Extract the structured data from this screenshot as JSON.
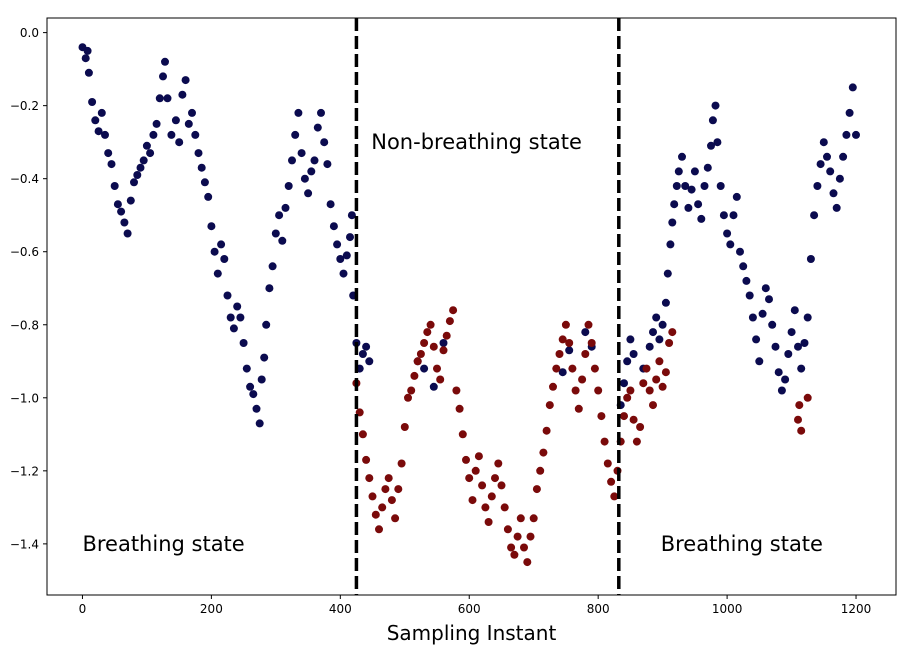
{
  "chart_data": {
    "type": "scatter",
    "title": "",
    "xlabel": "Sampling Instant",
    "ylabel": "",
    "xlim": [
      -55,
      1262
    ],
    "ylim": [
      -1.54,
      0.04
    ],
    "xticks": [
      0,
      200,
      400,
      600,
      800,
      1000,
      1200
    ],
    "xtick_labels": [
      "0",
      "200",
      "400",
      "600",
      "800",
      "1000",
      "1200"
    ],
    "yticks": [
      0.0,
      -0.2,
      -0.4,
      -0.6,
      -0.8,
      -1.0,
      -1.2,
      -1.4
    ],
    "ytick_labels": [
      "0.0",
      "−0.2",
      "−0.4",
      "−0.6",
      "−0.8",
      "−1.0",
      "−1.2",
      "−1.4"
    ],
    "grid": false,
    "colors": {
      "breathing": "#0b0b4f",
      "non_breathing": "#7a0a0a",
      "boundary": "#000000"
    },
    "boundaries": [
      425,
      832
    ],
    "annotations": [
      {
        "text": "Breathing state",
        "x": 0,
        "y": -1.4
      },
      {
        "text": "Non-breathing state",
        "x": 448,
        "y": -0.3
      },
      {
        "text": "Breathing state",
        "x": 897,
        "y": -1.4
      }
    ],
    "series": [
      {
        "color_key": "breathing",
        "points": [
          [
            0,
            -0.04
          ],
          [
            5,
            -0.07
          ],
          [
            8,
            -0.05
          ],
          [
            10,
            -0.11
          ],
          [
            15,
            -0.19
          ],
          [
            20,
            -0.24
          ],
          [
            25,
            -0.27
          ],
          [
            30,
            -0.22
          ],
          [
            35,
            -0.28
          ],
          [
            40,
            -0.33
          ],
          [
            45,
            -0.36
          ],
          [
            50,
            -0.42
          ],
          [
            55,
            -0.47
          ],
          [
            60,
            -0.49
          ],
          [
            65,
            -0.52
          ],
          [
            70,
            -0.55
          ],
          [
            75,
            -0.46
          ],
          [
            80,
            -0.41
          ],
          [
            85,
            -0.39
          ],
          [
            90,
            -0.37
          ],
          [
            95,
            -0.35
          ],
          [
            100,
            -0.31
          ],
          [
            105,
            -0.33
          ],
          [
            110,
            -0.28
          ],
          [
            115,
            -0.25
          ],
          [
            120,
            -0.18
          ],
          [
            125,
            -0.12
          ],
          [
            128,
            -0.08
          ],
          [
            132,
            -0.18
          ],
          [
            138,
            -0.28
          ],
          [
            145,
            -0.24
          ],
          [
            150,
            -0.3
          ],
          [
            155,
            -0.17
          ],
          [
            160,
            -0.13
          ],
          [
            165,
            -0.25
          ],
          [
            170,
            -0.22
          ],
          [
            175,
            -0.28
          ],
          [
            180,
            -0.33
          ],
          [
            185,
            -0.37
          ],
          [
            190,
            -0.41
          ],
          [
            195,
            -0.45
          ],
          [
            200,
            -0.53
          ],
          [
            205,
            -0.6
          ],
          [
            210,
            -0.66
          ],
          [
            215,
            -0.58
          ],
          [
            220,
            -0.62
          ],
          [
            225,
            -0.72
          ],
          [
            230,
            -0.78
          ],
          [
            235,
            -0.81
          ],
          [
            240,
            -0.75
          ],
          [
            245,
            -0.78
          ],
          [
            250,
            -0.85
          ],
          [
            255,
            -0.92
          ],
          [
            260,
            -0.97
          ],
          [
            265,
            -0.99
          ],
          [
            270,
            -1.03
          ],
          [
            275,
            -1.07
          ],
          [
            278,
            -0.95
          ],
          [
            282,
            -0.89
          ],
          [
            285,
            -0.8
          ],
          [
            290,
            -0.7
          ],
          [
            295,
            -0.64
          ],
          [
            300,
            -0.55
          ],
          [
            305,
            -0.5
          ],
          [
            310,
            -0.57
          ],
          [
            315,
            -0.48
          ],
          [
            320,
            -0.42
          ],
          [
            325,
            -0.35
          ],
          [
            330,
            -0.28
          ],
          [
            335,
            -0.22
          ],
          [
            340,
            -0.33
          ],
          [
            345,
            -0.4
          ],
          [
            350,
            -0.44
          ],
          [
            355,
            -0.38
          ],
          [
            360,
            -0.35
          ],
          [
            365,
            -0.26
          ],
          [
            370,
            -0.22
          ],
          [
            375,
            -0.3
          ],
          [
            380,
            -0.36
          ],
          [
            385,
            -0.47
          ],
          [
            390,
            -0.53
          ],
          [
            395,
            -0.58
          ],
          [
            400,
            -0.62
          ],
          [
            405,
            -0.66
          ],
          [
            410,
            -0.61
          ],
          [
            415,
            -0.56
          ],
          [
            418,
            -0.5
          ],
          [
            420,
            -0.72
          ],
          [
            425,
            -0.85
          ],
          [
            430,
            -0.92
          ],
          [
            435,
            -0.88
          ],
          [
            440,
            -0.86
          ],
          [
            445,
            -0.9
          ],
          [
            520,
            -0.9
          ],
          [
            530,
            -0.92
          ],
          [
            545,
            -0.97
          ],
          [
            560,
            -0.85
          ],
          [
            745,
            -0.93
          ],
          [
            755,
            -0.87
          ],
          [
            780,
            -0.82
          ],
          [
            790,
            -0.86
          ],
          [
            835,
            -1.02
          ],
          [
            840,
            -0.96
          ],
          [
            845,
            -0.9
          ],
          [
            850,
            -0.84
          ],
          [
            855,
            -0.88
          ],
          [
            870,
            -0.92
          ],
          [
            880,
            -0.86
          ],
          [
            885,
            -0.82
          ],
          [
            890,
            -0.78
          ],
          [
            895,
            -0.84
          ],
          [
            900,
            -0.8
          ],
          [
            905,
            -0.74
          ],
          [
            908,
            -0.66
          ],
          [
            912,
            -0.58
          ],
          [
            915,
            -0.52
          ],
          [
            918,
            -0.47
          ],
          [
            922,
            -0.42
          ],
          [
            925,
            -0.38
          ],
          [
            930,
            -0.34
          ],
          [
            935,
            -0.42
          ],
          [
            940,
            -0.48
          ],
          [
            945,
            -0.43
          ],
          [
            950,
            -0.38
          ],
          [
            955,
            -0.47
          ],
          [
            960,
            -0.51
          ],
          [
            965,
            -0.42
          ],
          [
            970,
            -0.37
          ],
          [
            975,
            -0.31
          ],
          [
            978,
            -0.24
          ],
          [
            982,
            -0.2
          ],
          [
            985,
            -0.3
          ],
          [
            990,
            -0.42
          ],
          [
            995,
            -0.5
          ],
          [
            1000,
            -0.55
          ],
          [
            1005,
            -0.58
          ],
          [
            1010,
            -0.5
          ],
          [
            1015,
            -0.45
          ],
          [
            1020,
            -0.6
          ],
          [
            1025,
            -0.64
          ],
          [
            1030,
            -0.68
          ],
          [
            1035,
            -0.72
          ],
          [
            1040,
            -0.78
          ],
          [
            1045,
            -0.84
          ],
          [
            1050,
            -0.9
          ],
          [
            1055,
            -0.77
          ],
          [
            1060,
            -0.7
          ],
          [
            1065,
            -0.73
          ],
          [
            1070,
            -0.8
          ],
          [
            1075,
            -0.86
          ],
          [
            1080,
            -0.93
          ],
          [
            1085,
            -0.98
          ],
          [
            1090,
            -0.95
          ],
          [
            1095,
            -0.88
          ],
          [
            1100,
            -0.82
          ],
          [
            1105,
            -0.76
          ],
          [
            1110,
            -0.86
          ],
          [
            1115,
            -0.92
          ],
          [
            1120,
            -0.85
          ],
          [
            1125,
            -0.78
          ],
          [
            1130,
            -0.62
          ],
          [
            1135,
            -0.5
          ],
          [
            1140,
            -0.42
          ],
          [
            1145,
            -0.36
          ],
          [
            1150,
            -0.3
          ],
          [
            1155,
            -0.34
          ],
          [
            1160,
            -0.38
          ],
          [
            1165,
            -0.44
          ],
          [
            1170,
            -0.48
          ],
          [
            1175,
            -0.4
          ],
          [
            1180,
            -0.34
          ],
          [
            1185,
            -0.28
          ],
          [
            1190,
            -0.22
          ],
          [
            1195,
            -0.15
          ],
          [
            1200,
            -0.28
          ]
        ]
      },
      {
        "color_key": "non_breathing",
        "points": [
          [
            425,
            -0.96
          ],
          [
            430,
            -1.04
          ],
          [
            435,
            -1.1
          ],
          [
            440,
            -1.17
          ],
          [
            445,
            -1.22
          ],
          [
            450,
            -1.27
          ],
          [
            455,
            -1.32
          ],
          [
            460,
            -1.36
          ],
          [
            465,
            -1.3
          ],
          [
            470,
            -1.25
          ],
          [
            475,
            -1.22
          ],
          [
            480,
            -1.28
          ],
          [
            485,
            -1.33
          ],
          [
            490,
            -1.25
          ],
          [
            495,
            -1.18
          ],
          [
            500,
            -1.08
          ],
          [
            505,
            -1.0
          ],
          [
            510,
            -0.98
          ],
          [
            515,
            -0.94
          ],
          [
            520,
            -0.9
          ],
          [
            525,
            -0.88
          ],
          [
            530,
            -0.85
          ],
          [
            535,
            -0.82
          ],
          [
            540,
            -0.8
          ],
          [
            545,
            -0.86
          ],
          [
            550,
            -0.92
          ],
          [
            555,
            -0.95
          ],
          [
            560,
            -0.87
          ],
          [
            565,
            -0.83
          ],
          [
            570,
            -0.79
          ],
          [
            575,
            -0.76
          ],
          [
            580,
            -0.98
          ],
          [
            585,
            -1.03
          ],
          [
            590,
            -1.1
          ],
          [
            595,
            -1.17
          ],
          [
            600,
            -1.22
          ],
          [
            605,
            -1.28
          ],
          [
            610,
            -1.2
          ],
          [
            615,
            -1.16
          ],
          [
            620,
            -1.24
          ],
          [
            625,
            -1.3
          ],
          [
            630,
            -1.34
          ],
          [
            635,
            -1.27
          ],
          [
            640,
            -1.22
          ],
          [
            645,
            -1.18
          ],
          [
            650,
            -1.24
          ],
          [
            655,
            -1.3
          ],
          [
            660,
            -1.36
          ],
          [
            665,
            -1.41
          ],
          [
            670,
            -1.43
          ],
          [
            675,
            -1.38
          ],
          [
            680,
            -1.33
          ],
          [
            685,
            -1.41
          ],
          [
            690,
            -1.45
          ],
          [
            695,
            -1.38
          ],
          [
            700,
            -1.33
          ],
          [
            705,
            -1.25
          ],
          [
            710,
            -1.2
          ],
          [
            715,
            -1.15
          ],
          [
            720,
            -1.09
          ],
          [
            725,
            -1.02
          ],
          [
            730,
            -0.97
          ],
          [
            735,
            -0.92
          ],
          [
            740,
            -0.88
          ],
          [
            745,
            -0.84
          ],
          [
            750,
            -0.8
          ],
          [
            755,
            -0.85
          ],
          [
            760,
            -0.92
          ],
          [
            765,
            -0.98
          ],
          [
            770,
            -1.03
          ],
          [
            775,
            -0.95
          ],
          [
            780,
            -0.88
          ],
          [
            785,
            -0.8
          ],
          [
            790,
            -0.85
          ],
          [
            795,
            -0.92
          ],
          [
            800,
            -0.98
          ],
          [
            805,
            -1.05
          ],
          [
            810,
            -1.12
          ],
          [
            815,
            -1.18
          ],
          [
            820,
            -1.23
          ],
          [
            825,
            -1.27
          ],
          [
            830,
            -1.2
          ],
          [
            835,
            -1.12
          ],
          [
            840,
            -1.05
          ],
          [
            845,
            -1.0
          ],
          [
            850,
            -0.98
          ],
          [
            855,
            -1.06
          ],
          [
            860,
            -1.12
          ],
          [
            865,
            -1.08
          ],
          [
            870,
            -0.96
          ],
          [
            875,
            -0.92
          ],
          [
            880,
            -0.98
          ],
          [
            885,
            -1.02
          ],
          [
            890,
            -0.95
          ],
          [
            895,
            -0.9
          ],
          [
            900,
            -0.97
          ],
          [
            905,
            -0.93
          ],
          [
            910,
            -0.85
          ],
          [
            915,
            -0.82
          ],
          [
            1110,
            -1.06
          ],
          [
            1112,
            -1.02
          ],
          [
            1115,
            -1.09
          ],
          [
            1125,
            -1.0
          ]
        ]
      }
    ]
  }
}
